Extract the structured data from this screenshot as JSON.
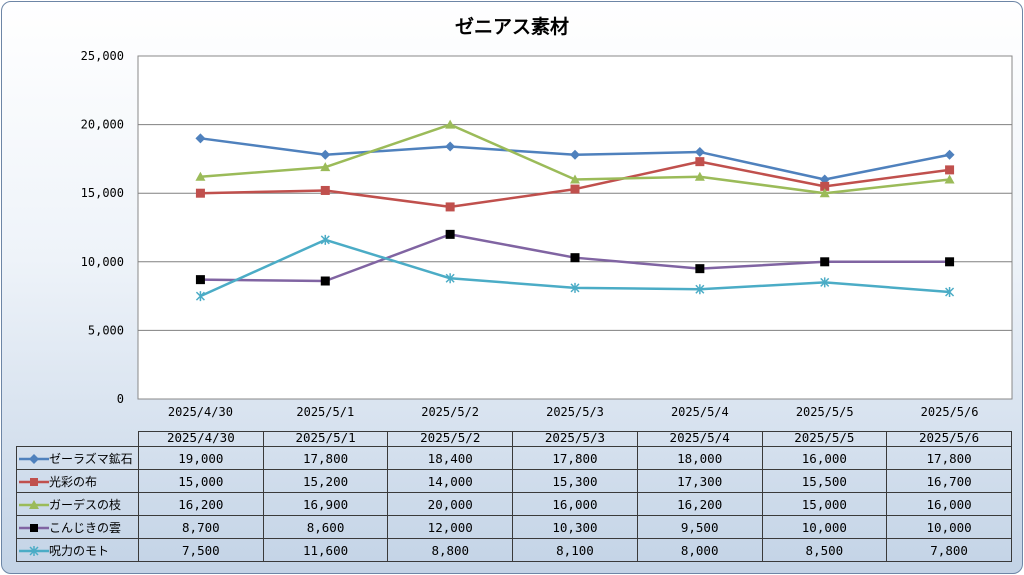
{
  "chart_data": {
    "type": "line",
    "title": "ゼニアス素材",
    "categories": [
      "2025/4/30",
      "2025/5/1",
      "2025/5/2",
      "2025/5/3",
      "2025/5/4",
      "2025/5/5",
      "2025/5/6"
    ],
    "ylim": [
      0,
      25000
    ],
    "yticks": [
      "25,000",
      "20,000",
      "15,000",
      "10,000",
      "5,000",
      "0"
    ],
    "grid": true,
    "legend": "data-table",
    "series": [
      {
        "name": "ゼーラズマ鉱石",
        "color": "#4f81bd",
        "marker": "diamond",
        "values": [
          19000,
          17800,
          18400,
          17800,
          18000,
          16000,
          17800
        ],
        "labels": [
          "19,000",
          "17,800",
          "18,400",
          "17,800",
          "18,000",
          "16,000",
          "17,800"
        ]
      },
      {
        "name": "光彩の布",
        "color": "#c0504d",
        "marker": "square",
        "values": [
          15000,
          15200,
          14000,
          15300,
          17300,
          15500,
          16700
        ],
        "labels": [
          "15,000",
          "15,200",
          "14,000",
          "15,300",
          "17,300",
          "15,500",
          "16,700"
        ]
      },
      {
        "name": "ガーデスの枝",
        "color": "#9bbb59",
        "marker": "triangle",
        "values": [
          16200,
          16900,
          20000,
          16000,
          16200,
          15000,
          16000
        ],
        "labels": [
          "16,200",
          "16,900",
          "20,000",
          "16,000",
          "16,200",
          "15,000",
          "16,000"
        ]
      },
      {
        "name": "こんじきの雲",
        "color": "#8064a2",
        "markerColor": "#000000",
        "marker": "square",
        "values": [
          8700,
          8600,
          12000,
          10300,
          9500,
          10000,
          10000
        ],
        "labels": [
          "8,700",
          "8,600",
          "12,000",
          "10,300",
          "9,500",
          "10,000",
          "10,000"
        ]
      },
      {
        "name": "呪力のモト",
        "color": "#4bacc6",
        "marker": "star",
        "values": [
          7500,
          11600,
          8800,
          8100,
          8000,
          8500,
          7800
        ],
        "labels": [
          "7,500",
          "11,600",
          "8,800",
          "8,100",
          "8,000",
          "8,500",
          "7,800"
        ]
      }
    ]
  }
}
